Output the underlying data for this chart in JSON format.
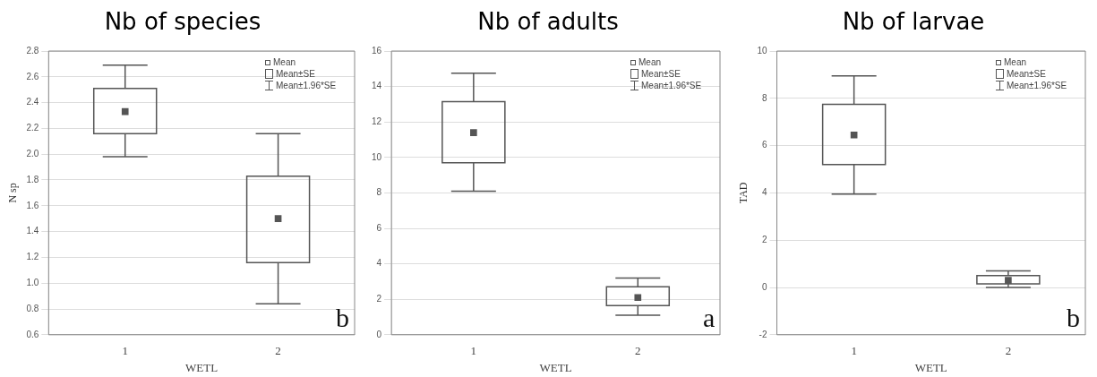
{
  "chart_data": [
    {
      "type": "box",
      "title": "Nb of species",
      "xlabel": "WETL",
      "ylabel": "N sp",
      "categories": [
        "1",
        "2"
      ],
      "color": "#555555",
      "boxes": [
        {
          "low": 1.98,
          "q1": 2.16,
          "median": 2.33,
          "q3": 2.51,
          "high": 2.69
        },
        {
          "low": 0.84,
          "q1": 1.16,
          "median": 1.5,
          "q3": 1.83,
          "high": 2.16
        }
      ],
      "ylim": [
        0.6,
        2.8
      ],
      "yticks": [
        0.6,
        0.8,
        {
          "value": 1,
          "label": "1.0"
        },
        1.2,
        1.4,
        1.6,
        1.8,
        {
          "value": 2,
          "label": "2.0"
        },
        2.2,
        2.4,
        2.6,
        2.8
      ],
      "grid": "y",
      "annotations": [
        "Mean",
        "Mean±SE",
        "Mean±1.96*SE",
        "b"
      ]
    },
    {
      "type": "box",
      "title": "Nb of adults",
      "xlabel": "WETL",
      "categories": [
        "1",
        "2"
      ],
      "color": "#555555",
      "boxes": [
        {
          "low": 8.1,
          "q1": 9.7,
          "median": 11.4,
          "q3": 13.15,
          "high": 14.75
        },
        {
          "low": 1.1,
          "q1": 1.65,
          "median": 2.1,
          "q3": 2.7,
          "high": 3.2
        }
      ],
      "ylim": [
        0,
        16
      ],
      "yticks": [
        0,
        2,
        4,
        6,
        8,
        10,
        12,
        14,
        16
      ],
      "grid": "y",
      "annotations": [
        "Mean",
        "Mean±SE",
        "Mean±1.96*SE",
        "a"
      ]
    },
    {
      "type": "box",
      "title": "Nb of larvae",
      "xlabel": "WETL",
      "ylabel": "TAD",
      "categories": [
        "1",
        "2"
      ],
      "color": "#555555",
      "boxes": [
        {
          "low": 3.95,
          "q1": 5.2,
          "median": 6.45,
          "q3": 7.75,
          "high": 8.95
        },
        {
          "low": 0,
          "q1": 0.15,
          "median": 0.3,
          "q3": 0.5,
          "high": 0.7
        }
      ],
      "ylim": [
        -2,
        10
      ],
      "yticks": [
        -2,
        0,
        2,
        4,
        6,
        8,
        10
      ],
      "grid": "y",
      "annotations": [
        "Mean",
        "Mean±SE",
        "Mean±1.96*SE",
        "b"
      ]
    }
  ]
}
